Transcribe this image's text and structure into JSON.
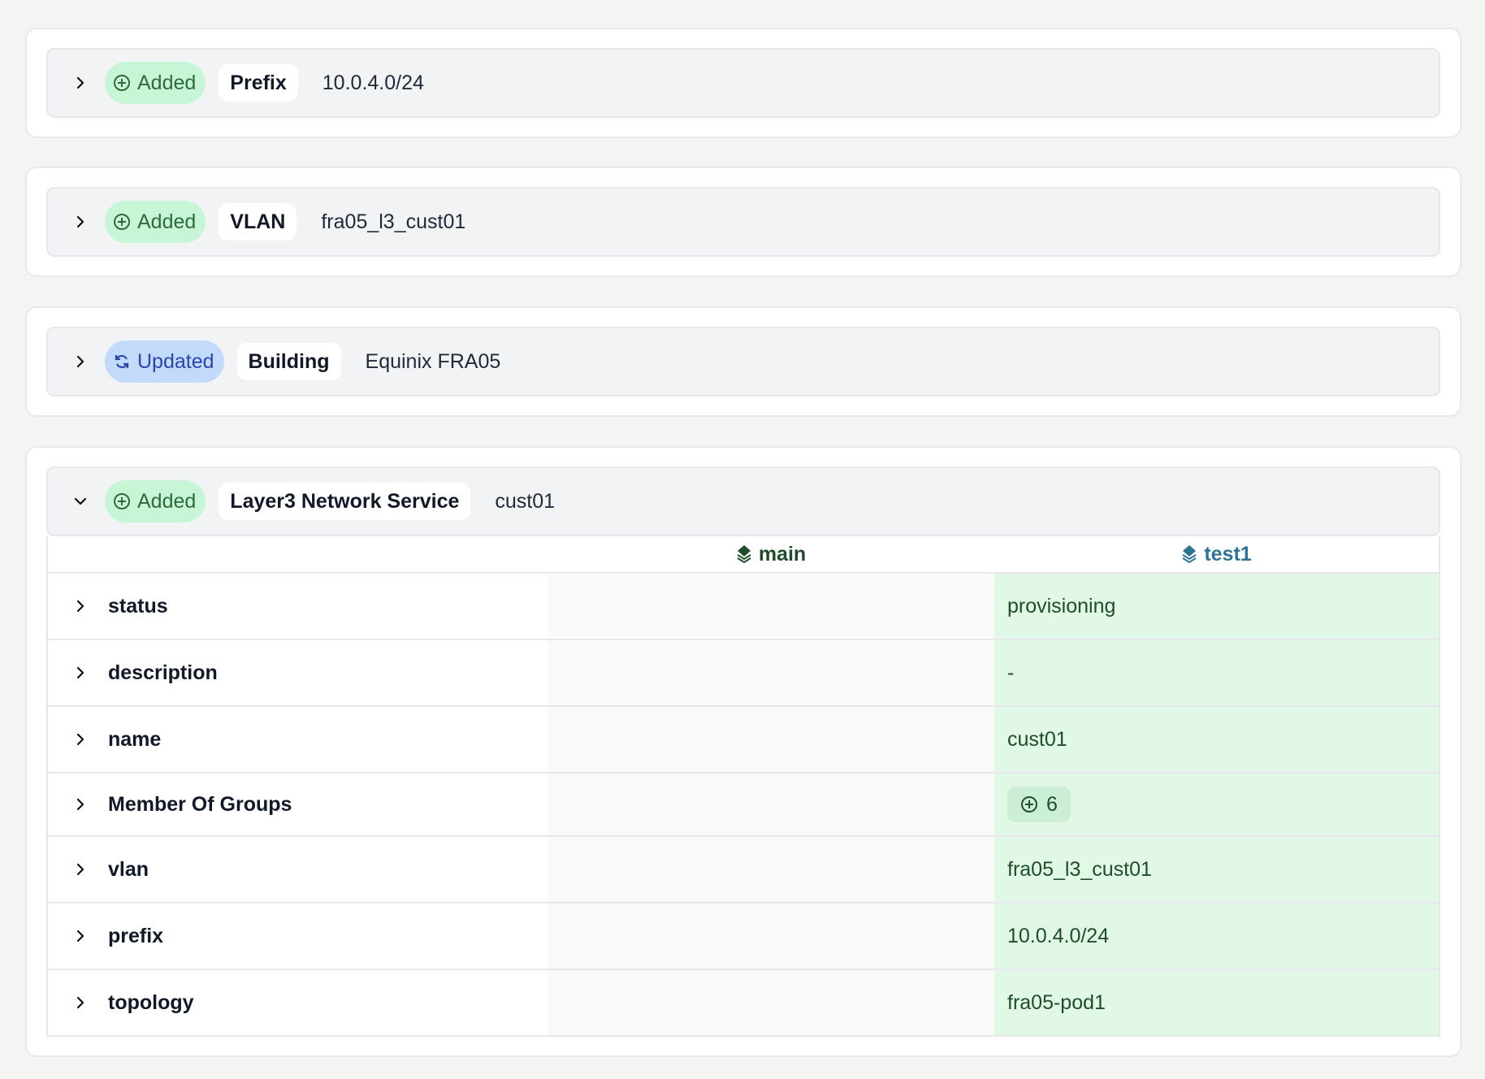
{
  "changes": [
    {
      "status": "Added",
      "kind": "Prefix",
      "name": "10.0.4.0/24",
      "expanded": false
    },
    {
      "status": "Added",
      "kind": "VLAN",
      "name": "fra05_l3_cust01",
      "expanded": false
    },
    {
      "status": "Updated",
      "kind": "Building",
      "name": "Equinix FRA05",
      "expanded": false
    },
    {
      "status": "Added",
      "kind": "Layer3 Network Service",
      "name": "cust01",
      "expanded": true
    }
  ],
  "diff": {
    "branches": {
      "base": "main",
      "compare": "test1"
    },
    "rows": [
      {
        "label": "status",
        "main": "",
        "test1": "provisioning"
      },
      {
        "label": "description",
        "main": "",
        "test1": "-"
      },
      {
        "label": "name",
        "main": "",
        "test1": "cust01"
      },
      {
        "label": "Member Of Groups",
        "main": "",
        "test1": "6"
      },
      {
        "label": "vlan",
        "main": "",
        "test1": "fra05_l3_cust01"
      },
      {
        "label": "prefix",
        "main": "",
        "test1": "10.0.4.0/24"
      },
      {
        "label": "topology",
        "main": "",
        "test1": "fra05-pod1"
      }
    ]
  },
  "colors": {
    "added": "#c6f6d5",
    "updated": "#c4dafa",
    "new_value_bg": "#e1f8e6",
    "main_branch": "#1f4d2b",
    "test_branch": "#2e7396"
  },
  "icons": {
    "added": "circle-plus",
    "updated": "refresh",
    "branch": "layers",
    "collapsed": "chevron-right",
    "expanded": "chevron-down"
  }
}
